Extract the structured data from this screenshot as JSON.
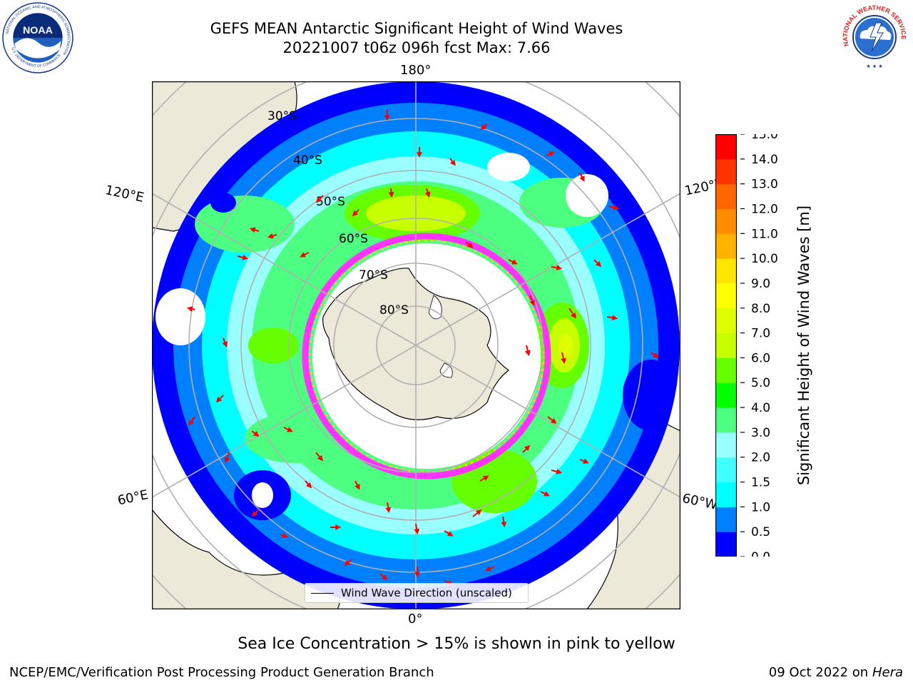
{
  "header": {
    "title_line1": "GEFS MEAN Antarctic Significant Height of Wind Waves",
    "title_line2": "20221007 t06z 096h fcst   Max: 7.66"
  },
  "logos": {
    "noaa_text": "NOAA",
    "noaa_ring_text": "NATIONAL OCEANIC AND ATMOSPHERIC ADMINISTRATION",
    "noaa_dept_text": "U.S. DEPARTMENT OF COMMERCE",
    "nws_ring_text": "NATIONAL WEATHER SERVICE"
  },
  "map": {
    "projection": "south polar stereographic",
    "longitude_labels": [
      "180°",
      "120°E",
      "120°W",
      "60°E",
      "60°W",
      "0°"
    ],
    "latitude_labels": [
      "30°S",
      "40°S",
      "50°S",
      "60°S",
      "70°S",
      "80°S"
    ],
    "land_color": "#ece9d8",
    "ocean_missing_color": "#ffffff",
    "graticule_color": "#b0b0b0",
    "arrow_color": "#ff0000",
    "sea_ice_colors": [
      "#ff33ff",
      "#ff66cc",
      "#ffcc33"
    ]
  },
  "legend": {
    "label": "Wind Wave Direction (unscaled)"
  },
  "colorbar": {
    "label": "Significant Height of Wind Waves [m]",
    "ticks": [
      "0.0",
      "0.5",
      "1.0",
      "1.5",
      "2.0",
      "3.0",
      "4.0",
      "5.0",
      "6.0",
      "7.0",
      "8.0",
      "9.0",
      "10.0",
      "11.0",
      "12.0",
      "13.0",
      "14.0",
      "15.0"
    ],
    "colors": [
      "#0000ff",
      "#0080ff",
      "#00ffff",
      "#40ffff",
      "#99ffff",
      "#4dff80",
      "#00ff00",
      "#66ff00",
      "#c8ff00",
      "#ddff00",
      "#ffff00",
      "#ffe600",
      "#ffb300",
      "#ff8c00",
      "#ff6600",
      "#ff3300",
      "#ff0000"
    ]
  },
  "chart_data": {
    "type": "heatmap",
    "title": "GEFS MEAN Antarctic Significant Height of Wind Waves",
    "run": "20221007 t06z 096h fcst",
    "max": 7.66,
    "units": "m",
    "colorbar_range": [
      0.0,
      15.0
    ],
    "wave_regions": [
      {
        "lon": 180,
        "lat": -52,
        "value": 6.5
      },
      {
        "lon": 165,
        "lat": -55,
        "value": 6.0
      },
      {
        "lon": -170,
        "lat": -55,
        "value": 5.0
      },
      {
        "lon": -90,
        "lat": -48,
        "value": 7.0
      },
      {
        "lon": -125,
        "lat": -42,
        "value": 3.5
      },
      {
        "lon": -45,
        "lat": -55,
        "value": 4.5
      },
      {
        "lon": 20,
        "lat": -52,
        "value": 4.0
      },
      {
        "lon": 60,
        "lat": -48,
        "value": 4.0
      },
      {
        "lon": 90,
        "lat": -52,
        "value": 4.0
      },
      {
        "lon": 120,
        "lat": -45,
        "value": 3.5
      },
      {
        "lon": 45,
        "lat": -40,
        "value": 0.5
      },
      {
        "lon": -20,
        "lat": -40,
        "value": 1.5
      },
      {
        "lon": 140,
        "lat": -40,
        "value": 1.0
      }
    ]
  },
  "caption": "Sea Ice Concentration > 15% is shown in pink to yellow",
  "footer": {
    "left": "NCEP/EMC/Verification Post Processing Product Generation Branch",
    "right_prefix": "09 Oct 2022 on ",
    "right_host": "Hera"
  }
}
